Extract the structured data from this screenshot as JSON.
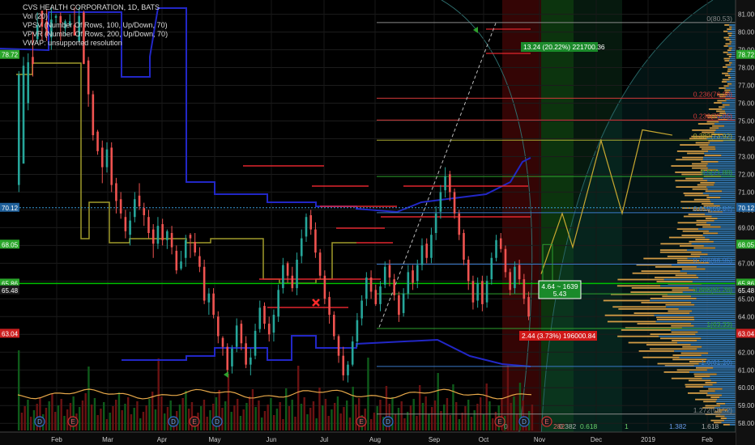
{
  "legend": {
    "title": "CVS HEALTH CORPORATION, 1D, BATS",
    "lines": [
      "Vol (20)",
      "VPSV (Number Of Rows, 100, Up/Down, 70)",
      "VPVR (Number Of Rows, 200, Up/Down, 70)",
      "VWAP: unsupported resolution"
    ]
  },
  "colors": {
    "up": "#26a69a",
    "down": "#ef5350",
    "vpsv": "#2227c6",
    "vpvr_up": "#3d86c8",
    "vpvr_down": "#e8a94a",
    "dark_red": "#8a0000",
    "bright_green": "#00c000"
  },
  "chart_data": {
    "type": "candlestick",
    "title": "CVS HEALTH CORPORATION, 1D, BATS",
    "ylim": [
      57.6,
      81.8
    ],
    "y_ticks": [
      "58.00",
      "59.00",
      "60.00",
      "61.00",
      "62.00",
      "63.00",
      "64.00",
      "65.00",
      "66.00",
      "67.00",
      "68.00",
      "69.00",
      "70.00",
      "71.00",
      "72.00",
      "73.00",
      "74.00",
      "75.00",
      "76.00",
      "77.00",
      "78.00",
      "79.00",
      "80.00",
      "81.00"
    ],
    "x_ticks": [
      "Feb",
      "Mar",
      "Apr",
      "May",
      "Jun",
      "Jul",
      "Aug",
      "Sep",
      "Oct",
      "Nov",
      "Dec",
      "2019",
      "Feb"
    ],
    "price_tags": [
      {
        "label": "78.72",
        "color": "#2aa52a"
      },
      {
        "label": "70.12",
        "color": "#1f5f99"
      },
      {
        "label": "68.05",
        "color": "#2aa52a"
      },
      {
        "label": "65.86",
        "color": "#2aa52a"
      },
      {
        "label": "65.52",
        "color": "#2aa52a"
      },
      {
        "label": "65.48",
        "color": "#1b1b1b"
      },
      {
        "label": "63.04",
        "color": "#cc1f1f"
      }
    ],
    "fib_levels": [
      {
        "label": "0(80.53)",
        "value": 80.53
      },
      {
        "label": "0.236(76.28)",
        "value": 76.28
      },
      {
        "label": "0.236(75.05)",
        "value": 75.05
      },
      {
        "label": "0.382(73.92)",
        "value": 73.92
      },
      {
        "label": "0.5(71.88)",
        "value": 71.88
      },
      {
        "label": "0.618(69.84)",
        "value": 69.84
      },
      {
        "label": "0.786(66.95)",
        "value": 66.95
      },
      {
        "label": "0.886(65.28)",
        "value": 65.28
      },
      {
        "label": "1(63.33)",
        "value": 63.33
      },
      {
        "label": "1.272(58.52)",
        "value": 58.52
      },
      {
        "label": "1.6(61.20)",
        "value": 61.2
      }
    ],
    "fib_time_labels": [
      "0",
      "0.382",
      "0.618",
      "1",
      "1.382",
      "1.618"
    ],
    "annotations": [
      {
        "text": "13.24 (20.22%) 221700.36",
        "kind": "green"
      },
      {
        "text": "4.64 ~ 1639",
        "kind": "green"
      },
      {
        "text": "5.43",
        "kind": "green"
      },
      {
        "text": "2.44 (3.73%) 196000.84",
        "kind": "red"
      }
    ],
    "event_markers": [
      "D",
      "E",
      "D",
      "E",
      "D",
      "E",
      "D",
      "E",
      "D",
      "E"
    ],
    "candles": [
      [
        72.0,
        71.4,
        77.6,
        77.8,
        71.0
      ],
      [
        71.4,
        72.6,
        78.1,
        78.6,
        77.6
      ],
      [
        72.0,
        76.0,
        78.3,
        78.8,
        75.6
      ],
      [
        72.1,
        78.6,
        78.2,
        80.0,
        77.5
      ],
      [
        72.3,
        79.6,
        80.4,
        81.1,
        79.4
      ],
      [
        72.5,
        81.2,
        80.3,
        81.2,
        79.5
      ],
      [
        72.7,
        80.6,
        79.8,
        81.3,
        79.5
      ],
      [
        72.8,
        79.7,
        80.7,
        81.4,
        79.0
      ],
      [
        73.0,
        80.8,
        80.9,
        81.0,
        80.5
      ],
      [
        73.2,
        80.9,
        80.5,
        81.1,
        79.5
      ],
      [
        73.3,
        80.2,
        80.6,
        80.7,
        79.8
      ],
      [
        73.5,
        80.4,
        80.6,
        81.0,
        80.3
      ],
      [
        73.7,
        80.4,
        79.8,
        81.4,
        79.8
      ],
      [
        73.8,
        79.5,
        80.9,
        81.4,
        79.4
      ],
      [
        74.0,
        81.1,
        78.2,
        81.2,
        78.2
      ],
      [
        74.2,
        78.4,
        76.5,
        78.6,
        75.8
      ],
      [
        74.3,
        76.5,
        74.2,
        76.7,
        73.9
      ],
      [
        74.5,
        74.4,
        73.3,
        74.5,
        73.1
      ],
      [
        74.7,
        73.5,
        72.4,
        73.9,
        71.5
      ],
      [
        74.8,
        72.4,
        73.4,
        73.8,
        72.1
      ],
      [
        75.0,
        73.5,
        71.4,
        73.8,
        71.0
      ],
      [
        75.2,
        71.5,
        70.5,
        71.8,
        69.8
      ],
      [
        75.3,
        70.6,
        69.8,
        71.0,
        69.5
      ],
      [
        75.5,
        69.6,
        68.8,
        70.0,
        68.4
      ],
      [
        75.7,
        68.6,
        69.4,
        69.9,
        68.0
      ],
      [
        75.8,
        69.6,
        70.6,
        71.0,
        69.3
      ],
      [
        76.0,
        70.8,
        70.2,
        71.5,
        70.0
      ],
      [
        76.2,
        70.1,
        69.7,
        70.4,
        69.1
      ],
      [
        76.3,
        69.6,
        68.7,
        70.0,
        68.4
      ],
      [
        76.5,
        68.9,
        68.1,
        69.2,
        67.3
      ],
      [
        76.7,
        68.1,
        69.1,
        69.6,
        67.8
      ],
      [
        76.8,
        69.2,
        68.3,
        69.5,
        68.0
      ],
      [
        77.0,
        68.3,
        68.8,
        68.9,
        67.8
      ],
      [
        77.2,
        68.7,
        67.9,
        69.1,
        67.5
      ],
      [
        77.3,
        67.7,
        66.6,
        68.0,
        66.4
      ],
      [
        77.5,
        66.7,
        67.1,
        67.7,
        66.6
      ],
      [
        77.7,
        67.3,
        68.3,
        68.6,
        66.8
      ],
      [
        77.8,
        68.6,
        68.4,
        68.7,
        67.3
      ],
      [
        78.0,
        68.2,
        67.6,
        68.7,
        67.4
      ],
      [
        78.2,
        67.4,
        66.8,
        67.9,
        66.5
      ],
      [
        78.3,
        66.8,
        64.9,
        67.2,
        64.7
      ],
      [
        78.5,
        64.8,
        65.3,
        65.6,
        64.1
      ],
      [
        78.7,
        65.3,
        64.1,
        65.6,
        63.9
      ],
      [
        78.8,
        64.0,
        62.9,
        64.3,
        62.5
      ],
      [
        79.0,
        62.8,
        62.3,
        62.9,
        61.8
      ],
      [
        79.2,
        62.3,
        61.0,
        62.5,
        60.6
      ],
      [
        79.3,
        61.2,
        62.2,
        62.4,
        60.8
      ],
      [
        79.5,
        62.3,
        63.5,
        63.9,
        62.0
      ],
      [
        79.7,
        63.6,
        62.5,
        63.8,
        62.1
      ],
      [
        79.8,
        62.5,
        61.3,
        62.9,
        61.1
      ],
      [
        80.0,
        61.3,
        61.7,
        62.2,
        60.7
      ],
      [
        80.2,
        61.8,
        63.2,
        63.6,
        61.6
      ],
      [
        80.3,
        63.3,
        64.5,
        64.9,
        63.1
      ],
      [
        80.5,
        64.6,
        63.6,
        64.8,
        63.3
      ],
      [
        80.7,
        63.6,
        63.0,
        64.0,
        62.6
      ],
      [
        80.8,
        63.1,
        64.1,
        64.4,
        62.6
      ],
      [
        81.0,
        64.0,
        65.5,
        65.8,
        63.7
      ],
      [
        81.2,
        65.6,
        66.9,
        67.3,
        65.3
      ],
      [
        81.3,
        67.0,
        66.3,
        67.1,
        65.9
      ],
      [
        81.5,
        66.3,
        65.6,
        66.8,
        65.4
      ],
      [
        81.7,
        65.6,
        67.2,
        67.6,
        65.2
      ],
      [
        81.8,
        67.4,
        68.4,
        68.9,
        67.0
      ],
      [
        82.0,
        68.5,
        69.6,
        69.8,
        68.2
      ],
      [
        82.2,
        69.7,
        68.9,
        70.0,
        68.6
      ],
      [
        82.3,
        68.9,
        67.6,
        69.3,
        67.3
      ],
      [
        82.5,
        67.6,
        66.3,
        67.8,
        66.1
      ],
      [
        82.7,
        66.3,
        65.0,
        66.6,
        64.7
      ],
      [
        82.8,
        65.1,
        64.1,
        65.4,
        63.6
      ],
      [
        83.0,
        64.1,
        62.9,
        64.3,
        62.7
      ],
      [
        83.2,
        62.9,
        61.8,
        63.0,
        61.4
      ],
      [
        83.3,
        61.8,
        60.7,
        62.3,
        60.4
      ],
      [
        83.5,
        60.7,
        61.3,
        61.5,
        60.3
      ],
      [
        83.7,
        61.3,
        62.6,
        62.9,
        61.2
      ],
      [
        83.8,
        62.6,
        63.8,
        64.2,
        62.3
      ],
      [
        84.0,
        63.9,
        64.9,
        65.2,
        63.5
      ],
      [
        84.2,
        65.0,
        66.2,
        66.5,
        64.6
      ],
      [
        84.3,
        66.2,
        65.4,
        66.6,
        65.0
      ],
      [
        84.5,
        65.5,
        64.7,
        65.8,
        64.6
      ],
      [
        84.7,
        64.7,
        65.7,
        66.0,
        64.3
      ],
      [
        84.8,
        65.8,
        66.8,
        67.1,
        65.6
      ],
      [
        85.0,
        66.9,
        66.2,
        67.2,
        65.7
      ],
      [
        85.2,
        66.1,
        65.2,
        66.4,
        64.9
      ],
      [
        85.3,
        65.2,
        64.1,
        65.4,
        63.7
      ],
      [
        85.5,
        64.2,
        65.3,
        65.6,
        64.0
      ],
      [
        85.7,
        65.3,
        66.5,
        66.9,
        65.0
      ],
      [
        85.8,
        66.6,
        65.9,
        66.9,
        65.5
      ],
      [
        86.0,
        66.0,
        66.9,
        67.2,
        65.6
      ],
      [
        86.2,
        66.9,
        68.0,
        68.4,
        66.6
      ],
      [
        86.3,
        68.1,
        67.3,
        68.4,
        67.0
      ],
      [
        86.5,
        67.3,
        68.6,
        69.0,
        67.0
      ],
      [
        86.7,
        68.7,
        69.8,
        70.2,
        68.3
      ],
      [
        86.8,
        69.9,
        71.0,
        71.4,
        69.5
      ],
      [
        87.0,
        71.1,
        71.9,
        72.4,
        70.7
      ],
      [
        87.2,
        72.0,
        71.0,
        72.2,
        70.5
      ],
      [
        87.3,
        71.0,
        69.8,
        71.2,
        69.5
      ],
      [
        87.5,
        69.8,
        68.6,
        70.0,
        68.3
      ],
      [
        87.7,
        68.7,
        67.2,
        68.9,
        66.9
      ],
      [
        87.8,
        67.2,
        66.0,
        67.4,
        65.5
      ],
      [
        88.0,
        66.0,
        64.8,
        66.3,
        64.4
      ],
      [
        88.2,
        64.9,
        65.9,
        66.2,
        64.5
      ],
      [
        88.3,
        66.0,
        64.7,
        66.3,
        64.3
      ],
      [
        88.5,
        64.8,
        66.0,
        66.3,
        64.5
      ],
      [
        88.7,
        66.1,
        67.3,
        67.6,
        65.8
      ],
      [
        88.8,
        67.3,
        68.3,
        68.6,
        67.1
      ],
      [
        89.0,
        68.4,
        67.8,
        68.7,
        67.6
      ],
      [
        89.2,
        67.8,
        66.5,
        68.0,
        66.2
      ],
      [
        89.3,
        66.5,
        65.5,
        66.7,
        65.2
      ],
      [
        89.5,
        65.6,
        66.8,
        67.1,
        65.3
      ],
      [
        89.7,
        66.9,
        66.1,
        67.2,
        65.8
      ],
      [
        89.8,
        66.1,
        65.0,
        66.4,
        64.7
      ],
      [
        90.0,
        65.1,
        64.0,
        65.4,
        63.8
      ]
    ],
    "volume_note": "volume histogram with moving average (orange line) at bottom"
  }
}
